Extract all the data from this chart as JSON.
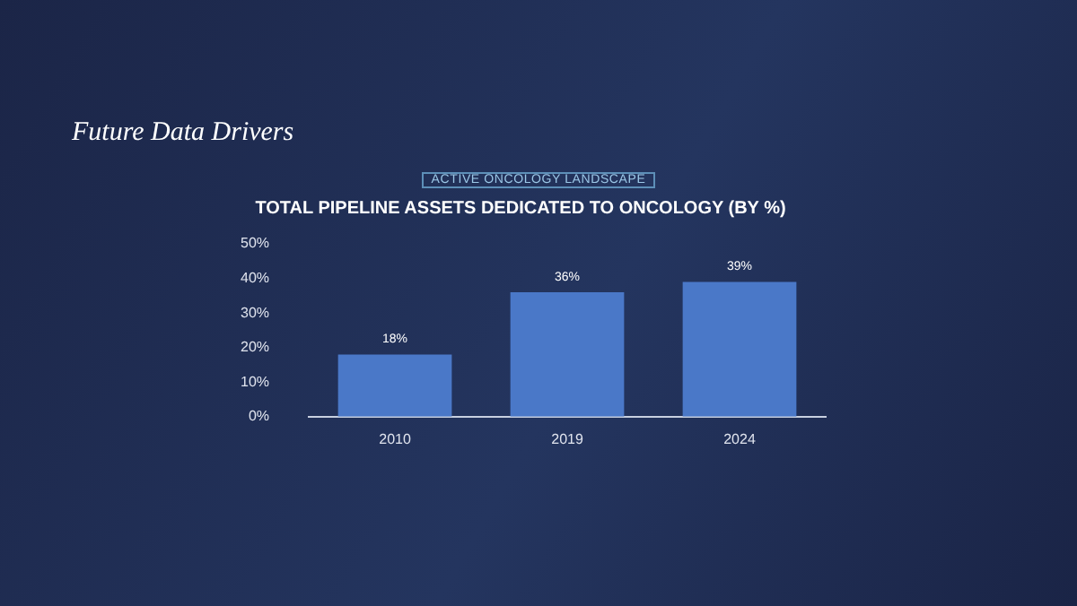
{
  "chart_data": {
    "type": "bar",
    "title": "TOTAL PIPELINE ASSETS DEDICATED TO ONCOLOGY (BY %)",
    "annotations": [
      "Future Data Drivers",
      "ACTIVE ONCOLOGY LANDSCAPE"
    ],
    "categories": [
      "2010",
      "2019",
      "2024"
    ],
    "values": [
      18,
      36,
      39
    ],
    "color": "#4a78c8",
    "value_labels": [
      "18%",
      "36%",
      "39%"
    ],
    "ylim": [
      0,
      50
    ],
    "yticks": [
      {
        "value": 0,
        "label": "0%"
      },
      {
        "value": 10,
        "label": "10%"
      },
      {
        "value": 20,
        "label": "20%"
      },
      {
        "value": 30,
        "label": "30%"
      },
      {
        "value": 40,
        "label": "40%"
      },
      {
        "value": 50,
        "label": "50%"
      }
    ],
    "grid": false,
    "legend": false
  }
}
